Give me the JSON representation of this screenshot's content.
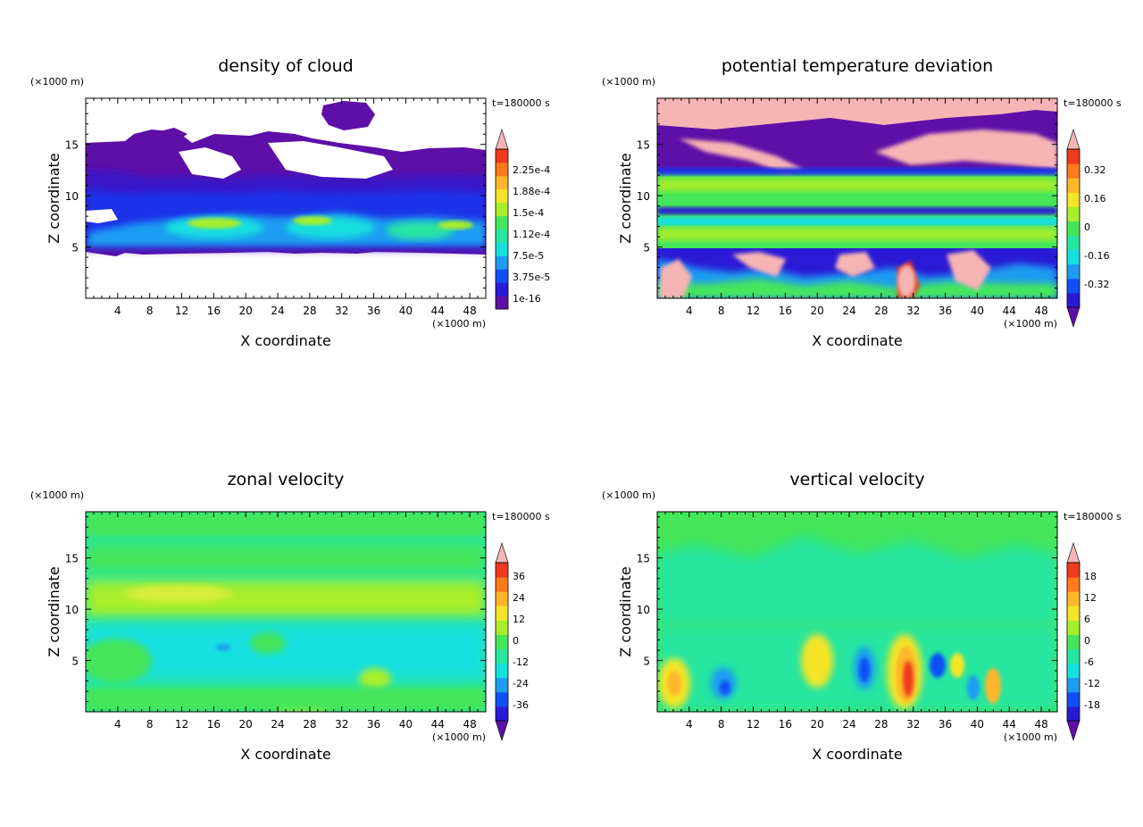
{
  "figure": {
    "panels": [
      {
        "id": "density-of-cloud",
        "title": "density of cloud",
        "time_label": "t=180000 s",
        "x_unit": "(×1000 m)",
        "z_unit": "(×1000 m)",
        "colorbar_labels": [
          "2.25e-4",
          "1.88e-4",
          "1.5e-4",
          "1.12e-4",
          "7.5e-5",
          "3.75e-5",
          "1e-16"
        ],
        "colors": [
          "#5e0fa8",
          "#2a1ad6",
          "#0f4ff5",
          "#1f9cf2",
          "#16dfe0",
          "#27e6a0",
          "#45e65a",
          "#a8ee2a",
          "#f5e528",
          "#ffb62a",
          "#ff7a1c",
          "#ef3a1c",
          "#f7b4b4"
        ]
      },
      {
        "id": "potential-temperature-deviation",
        "title": "potential temperature deviation",
        "time_label": "t=180000 s",
        "x_unit": "(×1000 m)",
        "z_unit": "(×1000 m)",
        "colorbar_labels": [
          "0.32",
          "0.16",
          "0",
          "-0.16",
          "-0.32"
        ],
        "colors": [
          "#5e0fa8",
          "#2a1ad6",
          "#0f4ff5",
          "#1f9cf2",
          "#16dfe0",
          "#27e6a0",
          "#45e65a",
          "#a8ee2a",
          "#f5e528",
          "#ffb62a",
          "#ff7a1c",
          "#ef3a1c",
          "#f7b4b4"
        ]
      },
      {
        "id": "zonal-velocity",
        "title": "zonal velocity",
        "time_label": "t=180000 s",
        "x_unit": "(×1000 m)",
        "z_unit": "(×1000 m)",
        "colorbar_labels": [
          "36",
          "24",
          "12",
          "0",
          "-12",
          "-24",
          "-36"
        ],
        "colors": [
          "#5e0fa8",
          "#2a1ad6",
          "#0f4ff5",
          "#1f9cf2",
          "#16dfe0",
          "#27e6a0",
          "#45e65a",
          "#a8ee2a",
          "#f5e528",
          "#ffb62a",
          "#ff7a1c",
          "#ef3a1c",
          "#f7b4b4"
        ]
      },
      {
        "id": "vertical-velocity",
        "title": "vertical velocity",
        "time_label": "t=180000 s",
        "x_unit": "(×1000 m)",
        "z_unit": "(×1000 m)",
        "colorbar_labels": [
          "18",
          "12",
          "6",
          "0",
          "-6",
          "-12",
          "-18"
        ],
        "colors": [
          "#5e0fa8",
          "#2a1ad6",
          "#0f4ff5",
          "#1f9cf2",
          "#16dfe0",
          "#27e6a0",
          "#45e65a",
          "#a8ee2a",
          "#f5e528",
          "#ffb62a",
          "#ff7a1c",
          "#ef3a1c",
          "#f7b4b4"
        ]
      }
    ]
  },
  "chart_data": [
    {
      "type": "heatmap",
      "title": "density of cloud",
      "xlabel": "X coordinate",
      "ylabel": "Z coordinate",
      "x_unit": "(×1000 m)",
      "y_unit": "(×1000 m)",
      "time_label": "t=180000 s",
      "x_ticks": [
        4,
        8,
        12,
        16,
        20,
        24,
        28,
        32,
        36,
        40,
        44,
        48
      ],
      "y_ticks": [
        5,
        10,
        15
      ],
      "xlim": [
        0,
        50
      ],
      "ylim": [
        0,
        19.5
      ],
      "colorbar_ticks": [
        0.000225,
        0.000188,
        0.00015,
        0.000112,
        7.5e-05,
        3.75e-05,
        1e-16
      ],
      "colorbar_range": [
        0,
        0.00026
      ],
      "colorbar_extend": "max",
      "field": "cloud layer from z≈5 to z≈15; peaks (1e-4 to 1.5e-4) near z≈7-8; blank (no cloud) below z≈5 and above the layer; isolated patch near x≈33, z≈18"
    },
    {
      "type": "heatmap",
      "title": "potential temperature deviation",
      "xlabel": "X coordinate",
      "ylabel": "Z coordinate",
      "x_unit": "(×1000 m)",
      "y_unit": "(×1000 m)",
      "time_label": "t=180000 s",
      "x_ticks": [
        4,
        8,
        12,
        16,
        20,
        24,
        28,
        32,
        36,
        40,
        44,
        48
      ],
      "y_ticks": [
        5,
        10,
        15
      ],
      "xlim": [
        0,
        50
      ],
      "ylim": [
        0,
        19.5
      ],
      "colorbar_ticks": [
        0.32,
        0.16,
        0,
        -0.16,
        -0.32
      ],
      "colorbar_range": [
        -0.4,
        0.4
      ],
      "colorbar_extend": "both",
      "field": "layered bands: strongly negative (≤-0.32) at z≈13-16 and below z≈5; near-zero band z≈5-12; saturated positive (≥0.4) patches near the top and near the surface"
    },
    {
      "type": "heatmap",
      "title": "zonal velocity",
      "xlabel": "X coordinate",
      "ylabel": "Z coordinate",
      "x_unit": "(×1000 m)",
      "y_unit": "(×1000 m)",
      "time_label": "t=180000 s",
      "x_ticks": [
        4,
        8,
        12,
        16,
        20,
        24,
        28,
        32,
        36,
        40,
        44,
        48
      ],
      "y_ticks": [
        5,
        10,
        15
      ],
      "xlim": [
        0,
        50
      ],
      "ylim": [
        0,
        19.5
      ],
      "colorbar_ticks": [
        36,
        24,
        12,
        0,
        -12,
        -24,
        -36
      ],
      "colorbar_range": [
        -42,
        42
      ],
      "colorbar_extend": "both",
      "field": "mostly near zero (-6 to +6); slightly positive bands at z≈10-12 and z≈17-19; slightly negative region z≈3-9"
    },
    {
      "type": "heatmap",
      "title": "vertical velocity",
      "xlabel": "X coordinate",
      "ylabel": "Z coordinate",
      "x_unit": "(×1000 m)",
      "y_unit": "(×1000 m)",
      "time_label": "t=180000 s",
      "x_ticks": [
        4,
        8,
        12,
        16,
        20,
        24,
        28,
        32,
        36,
        40,
        44,
        48
      ],
      "y_ticks": [
        5,
        10,
        15
      ],
      "xlim": [
        0,
        50
      ],
      "ylim": [
        0,
        19.5
      ],
      "colorbar_ticks": [
        18,
        12,
        6,
        0,
        -6,
        -12,
        -18
      ],
      "colorbar_range": [
        -21,
        21
      ],
      "colorbar_extend": "both",
      "field": "near zero above z≈8; alternating updraft/downdraft cells below z≈7: updrafts near x≈2, 20, 31 (≈+18), 38, 42; downdrafts near x≈9, 26, 35 (≈-12)"
    }
  ]
}
